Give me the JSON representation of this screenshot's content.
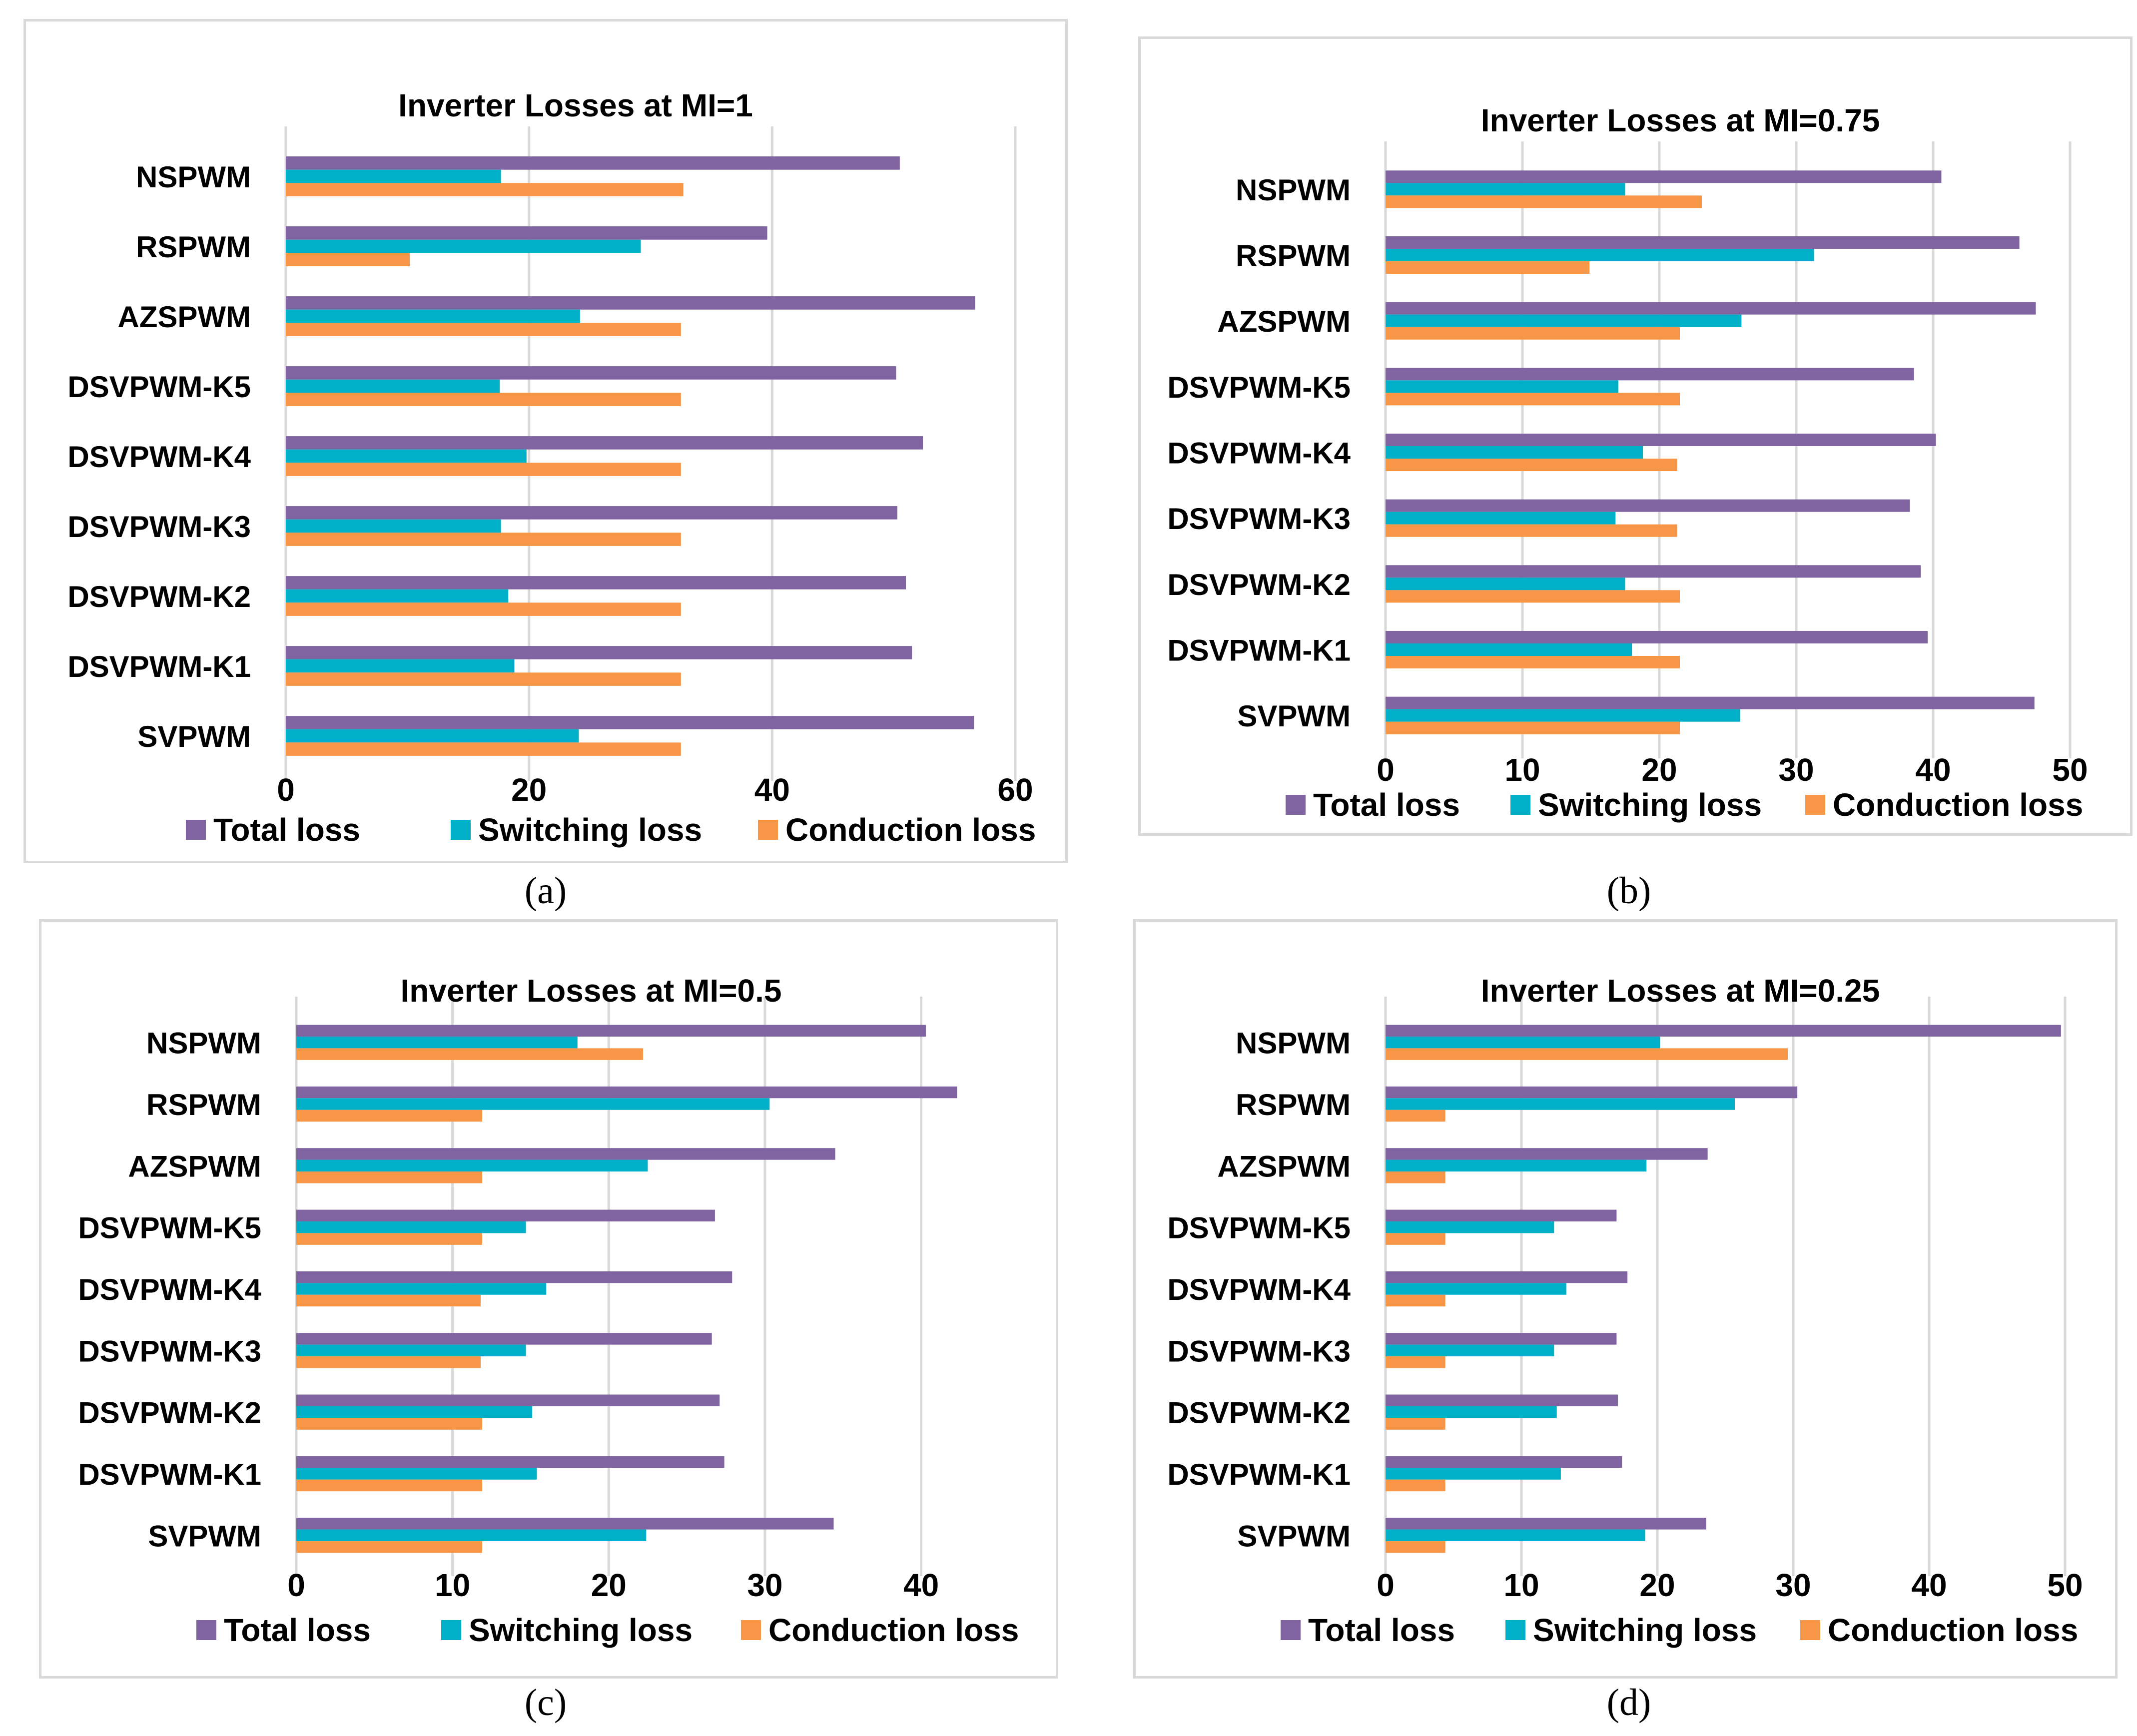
{
  "captions": [
    "(a)",
    "(b)",
    "(c)",
    "(d)"
  ],
  "legend": [
    {
      "name": "Total loss",
      "color": "#8064a2"
    },
    {
      "name": "Switching loss",
      "color": "#00b0c8"
    },
    {
      "name": "Conduction loss",
      "color": "#f79646"
    }
  ],
  "chart_data": [
    {
      "type": "bar",
      "orientation": "horizontal",
      "title": "Inverter Losses at MI=1",
      "categories": [
        "NSPWM",
        "RSPWM",
        "AZSPWM",
        "DSVPWM-K5",
        "DSVPWM-K4",
        "DSVPWM-K3",
        "DSVPWM-K2",
        "DSVPWM-K1",
        "SVPWM"
      ],
      "series": [
        {
          "name": "Total loss",
          "values": [
            50.5,
            39.6,
            56.7,
            50.2,
            52.4,
            50.3,
            51.0,
            51.5,
            56.6
          ]
        },
        {
          "name": "Switching loss",
          "values": [
            17.7,
            29.2,
            24.2,
            17.6,
            19.8,
            17.7,
            18.3,
            18.8,
            24.1
          ]
        },
        {
          "name": "Conduction loss",
          "values": [
            32.7,
            10.2,
            32.5,
            32.5,
            32.5,
            32.5,
            32.5,
            32.5,
            32.5
          ]
        }
      ],
      "xlim": [
        0,
        60
      ],
      "xticks": [
        0,
        20,
        40,
        60
      ],
      "legend_position": "bottom"
    },
    {
      "type": "bar",
      "orientation": "horizontal",
      "title": "Inverter Losses at MI=0.75",
      "categories": [
        "NSPWM",
        "RSPWM",
        "AZSPWM",
        "DSVPWM-K5",
        "DSVPWM-K4",
        "DSVPWM-K3",
        "DSVPWM-K2",
        "DSVPWM-K1",
        "SVPWM"
      ],
      "series": [
        {
          "name": "Total loss",
          "values": [
            40.6,
            46.3,
            47.5,
            38.6,
            40.2,
            38.3,
            39.1,
            39.6,
            47.4
          ]
        },
        {
          "name": "Switching loss",
          "values": [
            17.5,
            31.3,
            26.0,
            17.0,
            18.8,
            16.8,
            17.5,
            18.0,
            25.9
          ]
        },
        {
          "name": "Conduction loss",
          "values": [
            23.1,
            14.9,
            21.5,
            21.5,
            21.3,
            21.3,
            21.5,
            21.5,
            21.5
          ]
        }
      ],
      "xlim": [
        0,
        50
      ],
      "xticks": [
        0,
        10,
        20,
        30,
        40,
        50
      ],
      "legend_position": "bottom"
    },
    {
      "type": "bar",
      "orientation": "horizontal",
      "title": "Inverter Losses at MI=0.5",
      "categories": [
        "NSPWM",
        "RSPWM",
        "AZSPWM",
        "DSVPWM-K5",
        "DSVPWM-K4",
        "DSVPWM-K3",
        "DSVPWM-K2",
        "DSVPWM-K1",
        "SVPWM"
      ],
      "series": [
        {
          "name": "Total loss",
          "values": [
            40.3,
            42.3,
            34.5,
            26.8,
            27.9,
            26.6,
            27.1,
            27.4,
            34.4
          ]
        },
        {
          "name": "Switching loss",
          "values": [
            18.0,
            30.3,
            22.5,
            14.7,
            16.0,
            14.7,
            15.1,
            15.4,
            22.4
          ]
        },
        {
          "name": "Conduction loss",
          "values": [
            22.2,
            11.9,
            11.9,
            11.9,
            11.8,
            11.8,
            11.9,
            11.9,
            11.9
          ]
        }
      ],
      "xlim": [
        0,
        43.5
      ],
      "xticks": [
        0,
        10,
        20,
        30,
        40
      ],
      "legend_position": "bottom"
    },
    {
      "type": "bar",
      "orientation": "horizontal",
      "title": "Inverter Losses at MI=0.25",
      "categories": [
        "NSPWM",
        "RSPWM",
        "AZSPWM",
        "DSVPWM-K5",
        "DSVPWM-K4",
        "DSVPWM-K3",
        "DSVPWM-K2",
        "DSVPWM-K1",
        "SVPWM"
      ],
      "series": [
        {
          "name": "Total loss",
          "values": [
            49.7,
            30.3,
            23.7,
            17.0,
            17.8,
            17.0,
            17.1,
            17.4,
            23.6
          ]
        },
        {
          "name": "Switching loss",
          "values": [
            20.2,
            25.7,
            19.2,
            12.4,
            13.3,
            12.4,
            12.6,
            12.9,
            19.1
          ]
        },
        {
          "name": "Conduction loss",
          "values": [
            29.6,
            4.4,
            4.4,
            4.4,
            4.4,
            4.4,
            4.4,
            4.4,
            4.4
          ]
        }
      ],
      "xlim": [
        0,
        50
      ],
      "xticks": [
        0,
        10,
        20,
        30,
        40,
        50
      ],
      "legend_position": "bottom"
    }
  ]
}
